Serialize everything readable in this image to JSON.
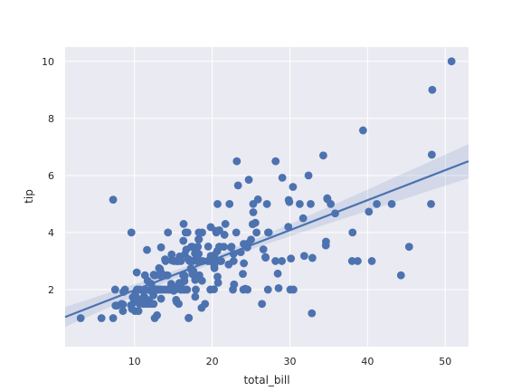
{
  "chart_data": {
    "type": "scatter",
    "title": "",
    "xlabel": "total_bill",
    "ylabel": "tip",
    "xlim": [
      1.07,
      53.0
    ],
    "ylim": [
      0.0,
      10.5
    ],
    "xticks": [
      10,
      20,
      30,
      40,
      50
    ],
    "yticks": [
      2,
      4,
      6,
      8,
      10
    ],
    "grid": true,
    "background": "#eaeaf2",
    "colors": {
      "points": "#4c72b0",
      "line": "#4c72b0",
      "band": "#4c72b0"
    },
    "regression": {
      "x": [
        1.07,
        53.0
      ],
      "y": [
        1.04,
        6.5
      ],
      "ci_upper": [
        1.39,
        6.92
      ],
      "ci_lower": [
        0.69,
        6.08
      ]
    },
    "points": [
      [
        3.07,
        1.0
      ],
      [
        5.75,
        1.0
      ],
      [
        7.25,
        1.0
      ],
      [
        7.25,
        5.15
      ],
      [
        7.51,
        2.0
      ],
      [
        7.56,
        1.44
      ],
      [
        7.74,
        1.44
      ],
      [
        8.35,
        1.5
      ],
      [
        8.51,
        1.25
      ],
      [
        8.52,
        1.48
      ],
      [
        8.58,
        1.92
      ],
      [
        8.77,
        2.0
      ],
      [
        9.55,
        1.45
      ],
      [
        9.6,
        4.0
      ],
      [
        9.68,
        1.32
      ],
      [
        9.78,
        1.73
      ],
      [
        9.94,
        1.56
      ],
      [
        10.07,
        1.25
      ],
      [
        10.07,
        1.83
      ],
      [
        10.27,
        1.71
      ],
      [
        10.29,
        2.6
      ],
      [
        10.33,
        1.67
      ],
      [
        10.33,
        2.0
      ],
      [
        10.34,
        1.66
      ],
      [
        10.34,
        2.0
      ],
      [
        10.51,
        1.25
      ],
      [
        10.59,
        1.61
      ],
      [
        10.63,
        2.0
      ],
      [
        10.65,
        1.5
      ],
      [
        11.02,
        1.98
      ],
      [
        11.17,
        1.5
      ],
      [
        11.24,
        1.76
      ],
      [
        11.35,
        2.5
      ],
      [
        11.38,
        2.0
      ],
      [
        11.59,
        1.5
      ],
      [
        11.61,
        3.39
      ],
      [
        11.69,
        2.31
      ],
      [
        11.87,
        1.63
      ],
      [
        12.02,
        1.97
      ],
      [
        12.03,
        1.5
      ],
      [
        12.16,
        2.2
      ],
      [
        12.26,
        2.0
      ],
      [
        12.43,
        1.8
      ],
      [
        12.46,
        1.5
      ],
      [
        12.48,
        2.52
      ],
      [
        12.54,
        2.5
      ],
      [
        12.6,
        1.0
      ],
      [
        12.66,
        2.5
      ],
      [
        12.69,
        2.0
      ],
      [
        12.74,
        2.01
      ],
      [
        12.9,
        1.1
      ],
      [
        13.0,
        2.0
      ],
      [
        13.03,
        2.0
      ],
      [
        13.13,
        2.0
      ],
      [
        13.16,
        2.75
      ],
      [
        13.27,
        2.5
      ],
      [
        13.28,
        2.72
      ],
      [
        13.37,
        2.0
      ],
      [
        13.39,
        2.61
      ],
      [
        13.42,
        1.68
      ],
      [
        13.42,
        3.48
      ],
      [
        13.51,
        2.0
      ],
      [
        13.81,
        2.0
      ],
      [
        13.94,
        3.06
      ],
      [
        14.0,
        3.0
      ],
      [
        14.07,
        2.5
      ],
      [
        14.15,
        2.0
      ],
      [
        14.26,
        2.5
      ],
      [
        14.31,
        4.0
      ],
      [
        14.48,
        2.0
      ],
      [
        14.52,
        2.0
      ],
      [
        14.73,
        2.2
      ],
      [
        14.78,
        3.23
      ],
      [
        14.83,
        3.02
      ],
      [
        15.01,
        2.09
      ],
      [
        15.04,
        1.96
      ],
      [
        15.06,
        3.0
      ],
      [
        15.36,
        1.64
      ],
      [
        15.38,
        3.0
      ],
      [
        15.42,
        1.57
      ],
      [
        15.48,
        2.02
      ],
      [
        15.53,
        3.0
      ],
      [
        15.69,
        1.5
      ],
      [
        15.69,
        3.0
      ],
      [
        15.77,
        2.23
      ],
      [
        15.81,
        3.16
      ],
      [
        15.95,
        2.0
      ],
      [
        15.98,
        2.03
      ],
      [
        15.98,
        3.0
      ],
      [
        16.0,
        2.0
      ],
      [
        16.04,
        2.24
      ],
      [
        16.27,
        2.5
      ],
      [
        16.29,
        3.71
      ],
      [
        16.31,
        2.0
      ],
      [
        16.32,
        4.3
      ],
      [
        16.4,
        2.5
      ],
      [
        16.43,
        2.3
      ],
      [
        16.45,
        2.47
      ],
      [
        16.47,
        3.23
      ],
      [
        16.49,
        2.0
      ],
      [
        16.58,
        4.0
      ],
      [
        16.66,
        3.4
      ],
      [
        16.76,
        2.0
      ],
      [
        16.82,
        4.0
      ],
      [
        16.93,
        3.07
      ],
      [
        16.97,
        1.0
      ],
      [
        16.99,
        1.01
      ],
      [
        17.07,
        3.0
      ],
      [
        17.26,
        2.74
      ],
      [
        17.29,
        2.71
      ],
      [
        17.31,
        3.5
      ],
      [
        17.46,
        2.54
      ],
      [
        17.47,
        3.5
      ],
      [
        17.51,
        3.0
      ],
      [
        17.59,
        2.64
      ],
      [
        17.78,
        3.27
      ],
      [
        17.81,
        2.34
      ],
      [
        17.82,
        1.75
      ],
      [
        17.89,
        2.0
      ],
      [
        17.92,
        3.08
      ],
      [
        18.04,
        3.0
      ],
      [
        18.15,
        3.5
      ],
      [
        18.24,
        3.76
      ],
      [
        18.26,
        3.25
      ],
      [
        18.28,
        4.0
      ],
      [
        18.29,
        3.76
      ],
      [
        18.35,
        2.5
      ],
      [
        18.43,
        3.0
      ],
      [
        18.64,
        1.36
      ],
      [
        18.69,
        2.31
      ],
      [
        18.71,
        4.0
      ],
      [
        18.78,
        3.0
      ],
      [
        19.08,
        1.5
      ],
      [
        19.44,
        3.0
      ],
      [
        19.49,
        3.51
      ],
      [
        19.65,
        3.0
      ],
      [
        19.77,
        2.0
      ],
      [
        19.81,
        4.19
      ],
      [
        19.82,
        3.18
      ],
      [
        20.08,
        3.15
      ],
      [
        20.23,
        2.01
      ],
      [
        20.27,
        2.83
      ],
      [
        20.29,
        2.75
      ],
      [
        20.29,
        3.21
      ],
      [
        20.45,
        3.0
      ],
      [
        20.49,
        4.06
      ],
      [
        20.53,
        4.0
      ],
      [
        20.65,
        3.35
      ],
      [
        20.69,
        2.45
      ],
      [
        20.69,
        5.0
      ],
      [
        20.76,
        2.24
      ],
      [
        20.9,
        3.5
      ],
      [
        20.92,
        4.08
      ],
      [
        21.01,
        3.5
      ],
      [
        21.01,
        3.0
      ],
      [
        21.16,
        3.0
      ],
      [
        21.5,
        3.5
      ],
      [
        21.58,
        3.92
      ],
      [
        21.7,
        4.3
      ],
      [
        22.12,
        2.88
      ],
      [
        22.23,
        5.0
      ],
      [
        22.42,
        3.48
      ],
      [
        22.49,
        3.5
      ],
      [
        22.67,
        2.0
      ],
      [
        22.75,
        3.25
      ],
      [
        22.76,
        3.0
      ],
      [
        22.82,
        2.18
      ],
      [
        23.1,
        4.0
      ],
      [
        23.17,
        6.5
      ],
      [
        23.33,
        5.65
      ],
      [
        23.68,
        3.31
      ],
      [
        23.95,
        2.55
      ],
      [
        24.01,
        2.0
      ],
      [
        24.06,
        3.6
      ],
      [
        24.08,
        2.92
      ],
      [
        24.27,
        2.03
      ],
      [
        24.52,
        3.48
      ],
      [
        24.55,
        2.0
      ],
      [
        24.59,
        3.61
      ],
      [
        24.71,
        5.85
      ],
      [
        25.0,
        3.75
      ],
      [
        25.21,
        4.29
      ],
      [
        25.28,
        5.0
      ],
      [
        25.29,
        4.71
      ],
      [
        25.56,
        4.34
      ],
      [
        25.71,
        4.0
      ],
      [
        25.89,
        5.16
      ],
      [
        26.41,
        1.5
      ],
      [
        26.59,
        3.41
      ],
      [
        26.86,
        3.14
      ],
      [
        26.88,
        3.12
      ],
      [
        27.05,
        5.0
      ],
      [
        27.18,
        2.0
      ],
      [
        27.2,
        4.0
      ],
      [
        27.28,
        4.0
      ],
      [
        28.15,
        3.0
      ],
      [
        28.17,
        6.5
      ],
      [
        28.44,
        2.56
      ],
      [
        28.55,
        2.05
      ],
      [
        28.97,
        3.0
      ],
      [
        29.03,
        5.92
      ],
      [
        29.8,
        4.2
      ],
      [
        29.85,
        5.14
      ],
      [
        29.93,
        5.07
      ],
      [
        30.06,
        2.0
      ],
      [
        30.14,
        3.09
      ],
      [
        30.4,
        5.6
      ],
      [
        30.46,
        2.0
      ],
      [
        31.27,
        5.0
      ],
      [
        31.71,
        4.5
      ],
      [
        31.85,
        3.18
      ],
      [
        32.4,
        6.0
      ],
      [
        32.68,
        5.0
      ],
      [
        32.83,
        1.17
      ],
      [
        32.9,
        3.11
      ],
      [
        34.3,
        6.7
      ],
      [
        34.63,
        3.55
      ],
      [
        34.65,
        3.68
      ],
      [
        34.81,
        5.2
      ],
      [
        34.83,
        5.17
      ],
      [
        35.26,
        5.0
      ],
      [
        35.83,
        4.67
      ],
      [
        38.01,
        3.0
      ],
      [
        38.07,
        4.0
      ],
      [
        38.73,
        3.0
      ],
      [
        39.42,
        7.58
      ],
      [
        40.17,
        4.73
      ],
      [
        40.55,
        3.0
      ],
      [
        41.19,
        5.0
      ],
      [
        43.11,
        5.0
      ],
      [
        44.3,
        2.5
      ],
      [
        45.35,
        3.5
      ],
      [
        48.17,
        5.0
      ],
      [
        48.27,
        6.73
      ],
      [
        48.33,
        9.0
      ],
      [
        50.81,
        10.0
      ]
    ]
  }
}
